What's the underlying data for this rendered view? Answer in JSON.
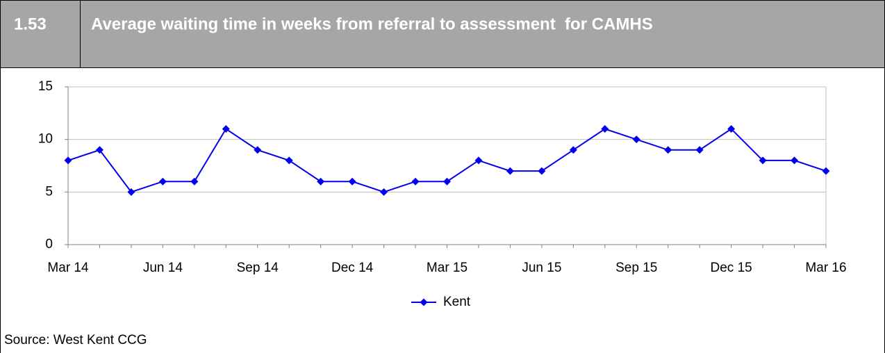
{
  "chart_data": {
    "type": "line",
    "number": "1.53",
    "title": "Average waiting time in weeks from referral to assessment  for CAMHS",
    "categories": [
      "Mar 14",
      null,
      null,
      "Jun 14",
      null,
      null,
      "Sep 14",
      null,
      null,
      "Dec 14",
      null,
      null,
      "Mar 15",
      null,
      null,
      "Jun 15",
      null,
      null,
      "Sep 15",
      null,
      null,
      "Dec 15",
      null,
      null,
      "Mar 16"
    ],
    "series": [
      {
        "name": "Kent",
        "color": "#0000ee",
        "values": [
          8,
          9,
          5,
          6,
          6,
          11,
          9,
          8,
          6,
          6,
          5,
          6,
          6,
          8,
          7,
          7,
          9,
          11,
          10,
          9,
          9,
          11,
          8,
          8,
          7
        ]
      }
    ],
    "ylim": [
      0,
      15
    ],
    "yticks": [
      0,
      5,
      10,
      15
    ],
    "grid": true,
    "legend": "bottom",
    "source": "Source: West Kent CCG"
  }
}
